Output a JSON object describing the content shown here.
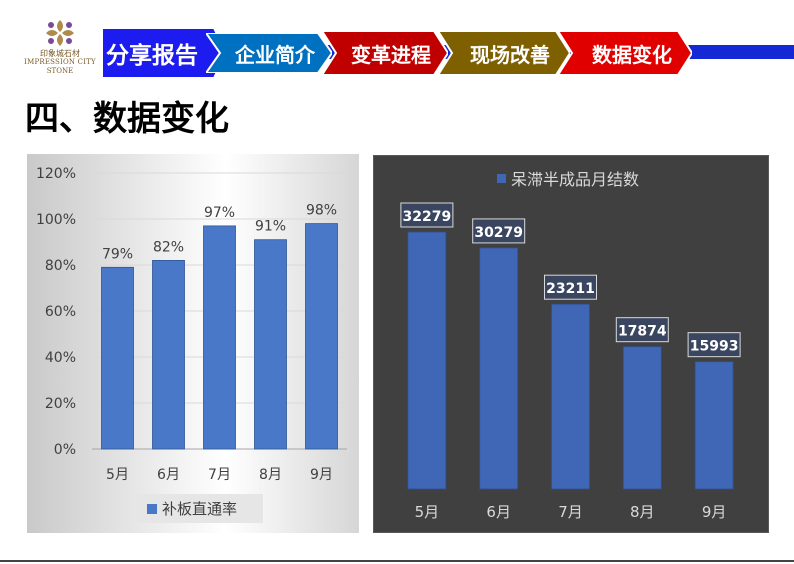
{
  "logo": {
    "cn": "印象城石材",
    "en_line1": "IMPRESSION CITY",
    "en_line2": "STONE"
  },
  "nav": {
    "items": [
      {
        "label": "分享报告",
        "color": "#1c1cf0"
      },
      {
        "label": "企业简介",
        "color": "#0070c0"
      },
      {
        "label": "变革进程",
        "color": "#c00000"
      },
      {
        "label": "现场改善",
        "color": "#7f6000"
      },
      {
        "label": "数据变化",
        "color": "#e00000"
      }
    ]
  },
  "page_title": "四、数据变化",
  "chart_data": [
    {
      "type": "bar",
      "categories": [
        "5月",
        "6月",
        "7月",
        "8月",
        "9月"
      ],
      "series": [
        {
          "name": "补板直通率",
          "values": [
            79,
            82,
            97,
            91,
            98
          ],
          "color": "#4a78c8"
        }
      ],
      "data_labels": [
        "79%",
        "82%",
        "97%",
        "91%",
        "98%"
      ],
      "yticks": [
        "0%",
        "20%",
        "40%",
        "60%",
        "80%",
        "100%",
        "120%"
      ],
      "ylim": [
        0,
        120
      ],
      "grid": true,
      "legend": "bottom"
    },
    {
      "type": "bar",
      "categories": [
        "5月",
        "6月",
        "7月",
        "8月",
        "9月"
      ],
      "series": [
        {
          "name": "呆滞半成品月结数",
          "values": [
            32279,
            30279,
            23211,
            17874,
            15993
          ],
          "color": "#3f67b5"
        }
      ],
      "data_labels": [
        "32279",
        "30279",
        "23211",
        "17874",
        "15993"
      ],
      "grid": false,
      "legend": "top"
    }
  ]
}
